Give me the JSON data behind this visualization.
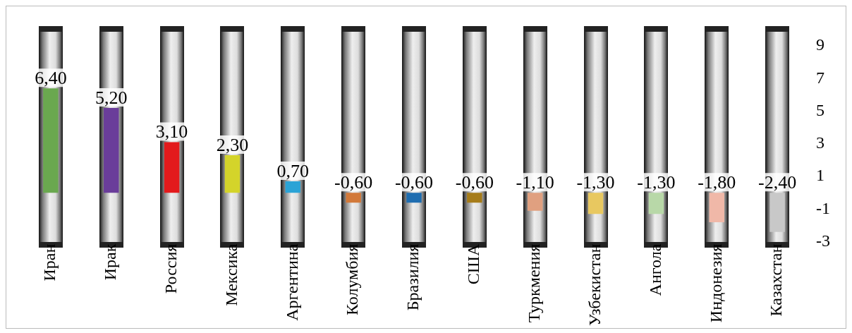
{
  "chart_data": {
    "type": "bar",
    "categories": [
      "Иран",
      "Ирак",
      "Россия",
      "Мексика",
      "Аргентина",
      "Колумбия",
      "Бразилия",
      "США",
      "Туркмения",
      "Узбекистан",
      "Ангола",
      "Индонезия",
      "Казахстан"
    ],
    "values": [
      6.4,
      5.2,
      3.1,
      2.3,
      0.7,
      -0.6,
      -0.6,
      -0.6,
      -1.1,
      -1.3,
      -1.3,
      -1.8,
      -2.4
    ],
    "colors": [
      "#6aa84f",
      "#6a3d9a",
      "#e31a1c",
      "#d4d42a",
      "#2ba3d6",
      "#d2793a",
      "#1f6db0",
      "#a67c1a",
      "#e0a080",
      "#e8c860",
      "#b8d8a8",
      "#f0b8a8",
      "#c8c8c8"
    ],
    "value_labels": [
      "6,40",
      "5,20",
      "3,10",
      "2,30",
      "0,70",
      "-0,60",
      "-0,60",
      "-0,60",
      "-1,10",
      "-1,30",
      "-1,30",
      "-1,80",
      "-2,40"
    ],
    "ylim": [
      -3,
      9
    ],
    "yticks": [
      9,
      7,
      5,
      3,
      1,
      -1,
      -3
    ],
    "grid": false,
    "legend": false
  }
}
